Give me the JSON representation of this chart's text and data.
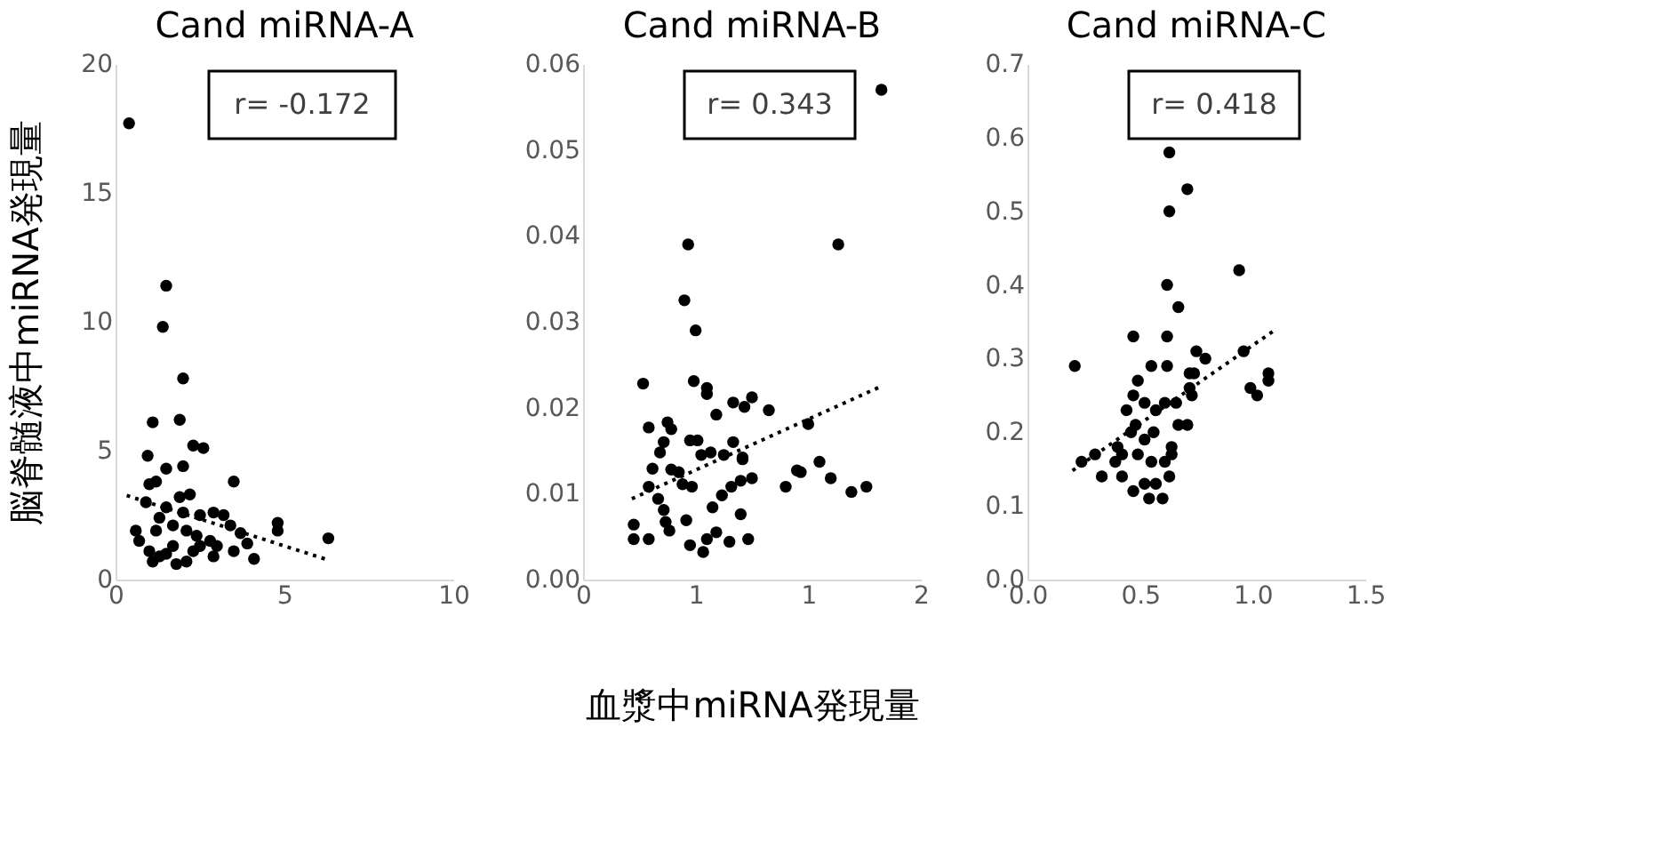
{
  "chart_data": [
    {
      "type": "scatter",
      "title": "Cand miRNA-A",
      "ylabel": "脳脊髄液中miRNA発現量",
      "annotations": [
        "r= -0.172"
      ],
      "xlim": [
        0,
        10
      ],
      "xticks": [
        0,
        5,
        10
      ],
      "ylim": [
        0,
        20
      ],
      "yticks": [
        0,
        5,
        10,
        15,
        20
      ],
      "grid": false,
      "series": [
        {
          "type": "scatter",
          "marker": "circle",
          "color": "#000000",
          "x": [
            0.4,
            1.5,
            1.4,
            2.0,
            1.1,
            1.9,
            0.95,
            1.5,
            2.0,
            2.3,
            2.6,
            3.5,
            1.0,
            1.2,
            1.9,
            2.2,
            0.9,
            1.5,
            2.0,
            2.5,
            2.9,
            3.2,
            0.6,
            0.7,
            1.2,
            1.3,
            1.7,
            2.1,
            2.4,
            2.8,
            3.0,
            3.4,
            3.7,
            3.9,
            4.1,
            3.5,
            2.9,
            4.8,
            4.8,
            6.3,
            1.1,
            1.5,
            1.8,
            2.1,
            2.3,
            1.0,
            1.7,
            1.3,
            2.5
          ],
          "values": [
            17.7,
            11.4,
            9.8,
            7.8,
            6.1,
            6.2,
            4.8,
            4.3,
            4.4,
            5.2,
            5.1,
            3.8,
            3.7,
            3.8,
            3.2,
            3.3,
            3.0,
            2.8,
            2.6,
            2.5,
            2.6,
            2.5,
            1.9,
            1.5,
            1.9,
            2.4,
            2.1,
            1.9,
            1.7,
            1.5,
            1.3,
            2.1,
            1.8,
            1.4,
            0.8,
            1.1,
            0.9,
            2.2,
            1.9,
            1.6,
            0.7,
            1.0,
            0.6,
            0.7,
            1.1,
            1.1,
            1.3,
            0.9,
            1.3
          ]
        },
        {
          "type": "line",
          "color": "#000000",
          "line_style": "dotted",
          "x": [
            0.33,
            6.2
          ],
          "values": [
            3.26,
            0.8
          ]
        }
      ]
    },
    {
      "type": "scatter",
      "title": "Cand miRNA-B",
      "xlabel": "血漿中miRNA発現量",
      "annotations": [
        "r= 0.343"
      ],
      "xlim": [
        0,
        1.8
      ],
      "xticks": [
        {
          "value": 0,
          "label": "0"
        },
        {
          "value": 0.6,
          "label": "1"
        },
        {
          "value": 1.2,
          "label": "1"
        },
        {
          "value": 1.8,
          "label": "2"
        }
      ],
      "ylim": [
        0,
        0.06
      ],
      "yticks": [
        {
          "value": 0,
          "label": "0.00"
        },
        {
          "value": 0.01,
          "label": "0.01"
        },
        {
          "value": 0.02,
          "label": "0.02"
        },
        {
          "value": 0.03,
          "label": "0.03"
        },
        {
          "value": 0.04,
          "label": "0.04"
        },
        {
          "value": 0.05,
          "label": "0.05"
        },
        {
          "value": 0.06,
          "label": "0.06"
        }
      ],
      "grid": false,
      "series": [
        {
          "type": "scatter",
          "marker": "circle",
          "color": "#000000",
          "x": [
            1.59,
            0.56,
            1.36,
            0.54,
            0.6,
            0.32,
            0.59,
            0.66,
            0.66,
            0.71,
            0.8,
            0.9,
            0.86,
            0.99,
            0.35,
            0.45,
            0.47,
            0.43,
            0.41,
            0.57,
            0.61,
            0.63,
            0.68,
            0.75,
            0.8,
            0.85,
            1.2,
            0.37,
            0.47,
            0.51,
            0.53,
            0.58,
            0.35,
            0.4,
            0.43,
            0.44,
            0.46,
            0.27,
            0.27,
            0.35,
            0.55,
            0.57,
            0.64,
            0.66,
            0.71,
            0.78,
            0.84,
            0.88,
            0.69,
            0.74,
            0.79,
            0.84,
            0.9,
            1.08,
            1.14,
            1.26,
            1.32,
            1.43,
            1.51,
            1.16,
            0.85
          ],
          "values": [
            0.057,
            0.039,
            0.039,
            0.0325,
            0.029,
            0.0228,
            0.0231,
            0.0223,
            0.0216,
            0.0192,
            0.0206,
            0.0212,
            0.0201,
            0.0197,
            0.0177,
            0.0183,
            0.0175,
            0.016,
            0.0148,
            0.0162,
            0.0162,
            0.0145,
            0.0148,
            0.0145,
            0.016,
            0.0142,
            0.0181,
            0.0129,
            0.0128,
            0.0125,
            0.0111,
            0.0108,
            0.0108,
            0.0094,
            0.0081,
            0.0067,
            0.0057,
            0.0064,
            0.0047,
            0.0047,
            0.0069,
            0.004,
            0.0032,
            0.0047,
            0.0055,
            0.0044,
            0.0076,
            0.0047,
            0.0084,
            0.0098,
            0.0108,
            0.0115,
            0.0118,
            0.0108,
            0.0127,
            0.0137,
            0.0118,
            0.0102,
            0.0108,
            0.0125,
            0.014
          ]
        },
        {
          "type": "line",
          "color": "#000000",
          "line_style": "dotted",
          "x": [
            0.26,
            1.58
          ],
          "values": [
            0.0094,
            0.0224
          ]
        }
      ]
    },
    {
      "type": "scatter",
      "title": "Cand miRNA-C",
      "annotations": [
        "r= 0.418"
      ],
      "xlim": [
        0,
        1.5
      ],
      "xticks": [
        {
          "value": 0,
          "label": "0.0"
        },
        0.5,
        {
          "value": 1,
          "label": "1.0"
        },
        1.5
      ],
      "ylim": [
        0,
        0.7
      ],
      "yticks": [
        {
          "value": 0,
          "label": "0.0"
        },
        0.1,
        0.2,
        0.3,
        0.4,
        0.5,
        0.6,
        0.7
      ],
      "grid": false,
      "series": [
        {
          "type": "scatter",
          "marker": "circle",
          "color": "#000000",
          "x": [
            0.63,
            0.71,
            0.63,
            0.94,
            0.62,
            0.67,
            0.21,
            0.47,
            0.62,
            0.96,
            0.75,
            0.79,
            0.62,
            0.55,
            0.49,
            0.72,
            0.74,
            0.72,
            0.73,
            0.99,
            1.02,
            1.07,
            1.07,
            0.47,
            0.52,
            0.61,
            0.66,
            0.44,
            0.57,
            0.67,
            0.71,
            0.48,
            0.56,
            0.52,
            0.46,
            0.4,
            0.42,
            0.49,
            0.55,
            0.64,
            0.64,
            0.3,
            0.24,
            0.33,
            0.42,
            0.52,
            0.47,
            0.54,
            0.6,
            0.57,
            0.63,
            0.61,
            0.39
          ],
          "values": [
            0.58,
            0.53,
            0.5,
            0.42,
            0.4,
            0.37,
            0.29,
            0.33,
            0.33,
            0.31,
            0.31,
            0.3,
            0.29,
            0.29,
            0.27,
            0.28,
            0.28,
            0.26,
            0.25,
            0.26,
            0.25,
            0.28,
            0.27,
            0.25,
            0.24,
            0.24,
            0.24,
            0.23,
            0.23,
            0.21,
            0.21,
            0.21,
            0.2,
            0.19,
            0.2,
            0.18,
            0.17,
            0.17,
            0.16,
            0.18,
            0.17,
            0.17,
            0.16,
            0.14,
            0.14,
            0.13,
            0.12,
            0.11,
            0.11,
            0.13,
            0.14,
            0.16,
            0.16
          ]
        },
        {
          "type": "line",
          "color": "#000000",
          "line_style": "dotted",
          "x": [
            0.2,
            1.09
          ],
          "values": [
            0.148,
            0.337
          ]
        }
      ]
    }
  ]
}
